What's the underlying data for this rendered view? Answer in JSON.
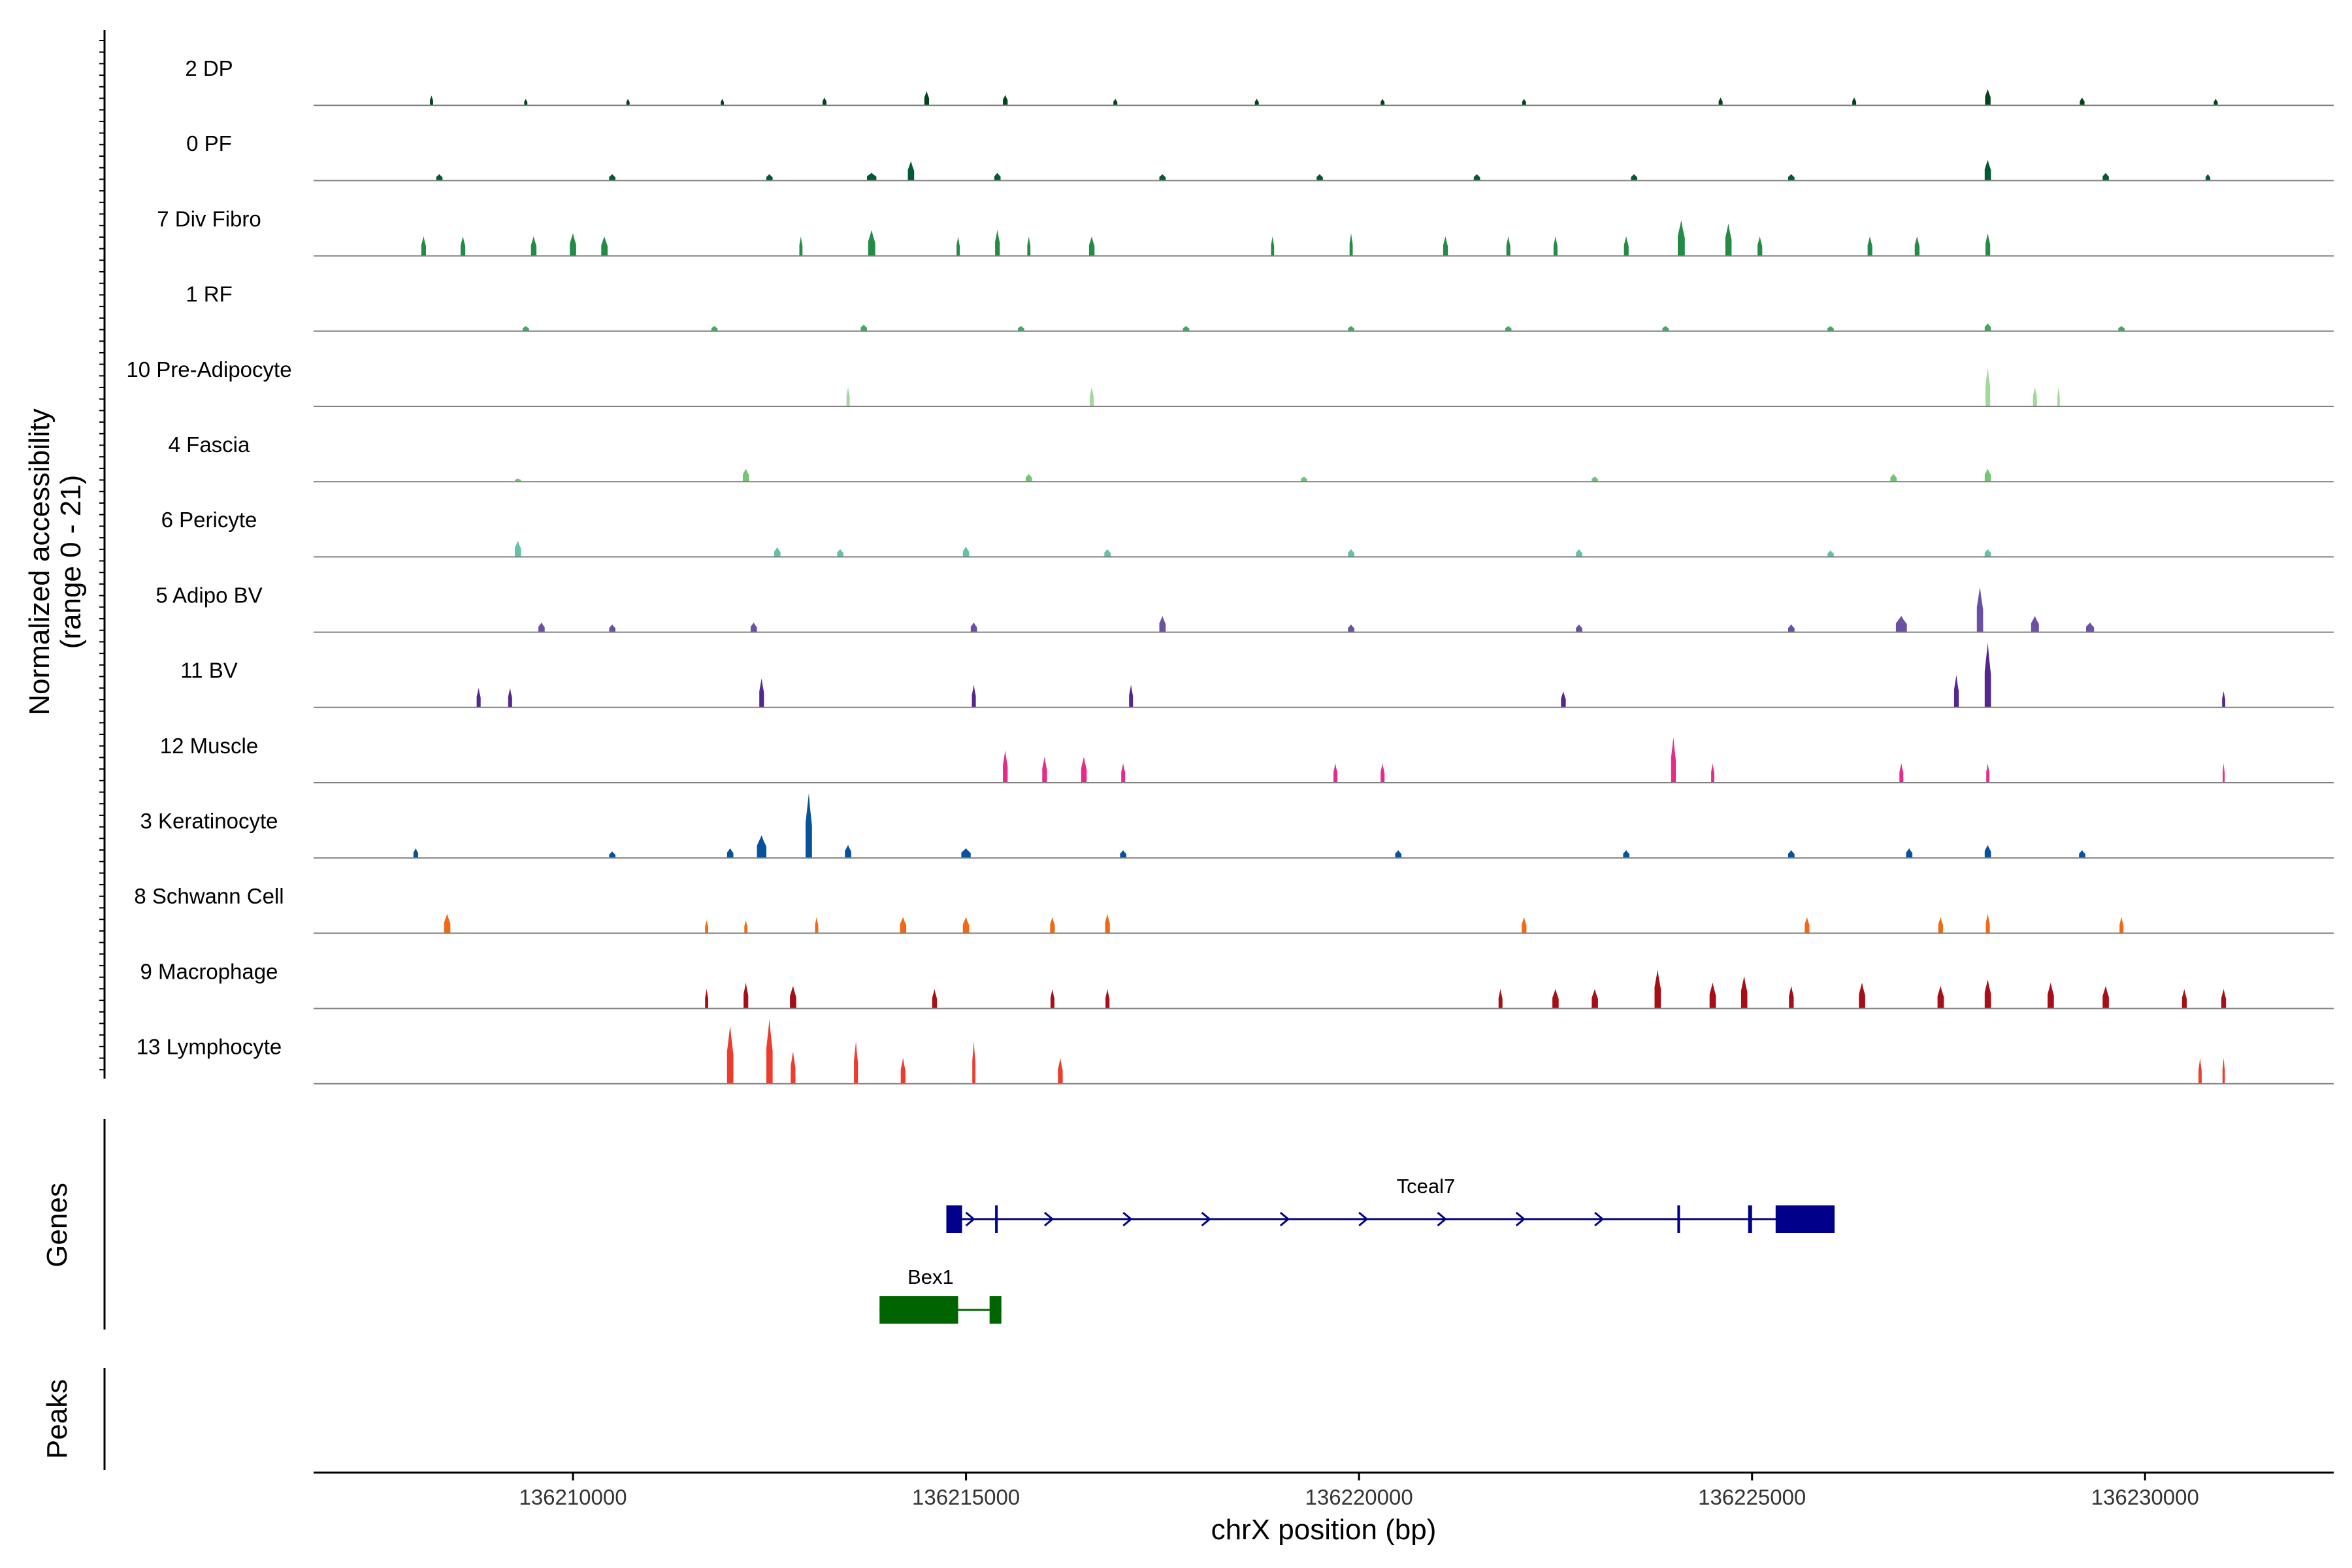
{
  "chart_data": {
    "type": "coverage",
    "title": "",
    "xlabel": "chrX position (bp)",
    "ylabel": [
      "Normalized accessibility",
      "(range 0 - 21)"
    ],
    "xlim": [
      136206700,
      136232400
    ],
    "ylim": [
      0,
      21
    ],
    "xticks": [
      136210000,
      136215000,
      136220000,
      136225000,
      136230000
    ],
    "xtick_labels": [
      "136210000",
      "136215000",
      "136220000",
      "136225000",
      "136230000"
    ],
    "tracks": [
      {
        "name": "2 DP",
        "color": "#00441b",
        "peaks": [
          [
            136208200,
            20,
            0.15
          ],
          [
            136209400,
            20,
            0.1
          ],
          [
            136210700,
            20,
            0.1
          ],
          [
            136211900,
            20,
            0.1
          ],
          [
            136213200,
            25,
            0.12
          ],
          [
            136214500,
            30,
            0.22
          ],
          [
            136215500,
            30,
            0.16
          ],
          [
            136216900,
            25,
            0.1
          ],
          [
            136218700,
            25,
            0.1
          ],
          [
            136220300,
            25,
            0.1
          ],
          [
            136222100,
            25,
            0.1
          ],
          [
            136224600,
            25,
            0.12
          ],
          [
            136226300,
            25,
            0.12
          ],
          [
            136228000,
            35,
            0.25
          ],
          [
            136229200,
            30,
            0.12
          ],
          [
            136230900,
            25,
            0.1
          ]
        ]
      },
      {
        "name": "0 PF",
        "color": "#005a32",
        "peaks": [
          [
            136208300,
            40,
            0.1
          ],
          [
            136210500,
            40,
            0.1
          ],
          [
            136212500,
            40,
            0.1
          ],
          [
            136213800,
            60,
            0.12
          ],
          [
            136214300,
            40,
            0.3
          ],
          [
            136215400,
            40,
            0.12
          ],
          [
            136217500,
            40,
            0.1
          ],
          [
            136219500,
            40,
            0.1
          ],
          [
            136221500,
            40,
            0.1
          ],
          [
            136223500,
            40,
            0.1
          ],
          [
            136225500,
            40,
            0.1
          ],
          [
            136228000,
            40,
            0.32
          ],
          [
            136229500,
            40,
            0.12
          ],
          [
            136230800,
            30,
            0.1
          ]
        ]
      },
      {
        "name": "7 Div Fibro",
        "color": "#238b45",
        "peaks": [
          [
            136208100,
            30,
            0.3
          ],
          [
            136208600,
            30,
            0.3
          ],
          [
            136209500,
            35,
            0.3
          ],
          [
            136210000,
            40,
            0.35
          ],
          [
            136210400,
            40,
            0.3
          ],
          [
            136212900,
            20,
            0.3
          ],
          [
            136213800,
            45,
            0.4
          ],
          [
            136214900,
            20,
            0.3
          ],
          [
            136215400,
            30,
            0.4
          ],
          [
            136215800,
            20,
            0.3
          ],
          [
            136216600,
            35,
            0.3
          ],
          [
            136218900,
            20,
            0.3
          ],
          [
            136219900,
            20,
            0.35
          ],
          [
            136221100,
            30,
            0.3
          ],
          [
            136221900,
            25,
            0.3
          ],
          [
            136222500,
            25,
            0.3
          ],
          [
            136223400,
            30,
            0.3
          ],
          [
            136224100,
            45,
            0.55
          ],
          [
            136224700,
            40,
            0.5
          ],
          [
            136225100,
            30,
            0.3
          ],
          [
            136226500,
            30,
            0.3
          ],
          [
            136227100,
            30,
            0.3
          ],
          [
            136228000,
            30,
            0.35
          ]
        ]
      },
      {
        "name": "1 RF",
        "color": "#41ab5d",
        "peaks": [
          [
            136209400,
            40,
            0.08
          ],
          [
            136211800,
            40,
            0.08
          ],
          [
            136213700,
            40,
            0.1
          ],
          [
            136215700,
            40,
            0.08
          ],
          [
            136217800,
            40,
            0.08
          ],
          [
            136219900,
            40,
            0.08
          ],
          [
            136221900,
            40,
            0.08
          ],
          [
            136223900,
            40,
            0.08
          ],
          [
            136226000,
            40,
            0.08
          ],
          [
            136228000,
            40,
            0.12
          ],
          [
            136229700,
            40,
            0.08
          ]
        ]
      },
      {
        "name": "10 Pre-Adipocyte",
        "color": "#a1d99b",
        "peaks": [
          [
            136213500,
            20,
            0.3
          ],
          [
            136216600,
            25,
            0.3
          ],
          [
            136228000,
            30,
            0.6
          ],
          [
            136228600,
            25,
            0.3
          ],
          [
            136228900,
            15,
            0.3
          ]
        ]
      },
      {
        "name": "4 Fascia",
        "color": "#74c476",
        "peaks": [
          [
            136209300,
            40,
            0.05
          ],
          [
            136212200,
            40,
            0.2
          ],
          [
            136215800,
            40,
            0.12
          ],
          [
            136219300,
            40,
            0.08
          ],
          [
            136223000,
            40,
            0.08
          ],
          [
            136226800,
            40,
            0.12
          ],
          [
            136228000,
            40,
            0.2
          ]
        ]
      },
      {
        "name": "6 Pericyte",
        "color": "#66c2a4",
        "peaks": [
          [
            136209300,
            40,
            0.25
          ],
          [
            136212600,
            40,
            0.15
          ],
          [
            136213400,
            40,
            0.12
          ],
          [
            136215000,
            40,
            0.16
          ],
          [
            136216800,
            40,
            0.12
          ],
          [
            136219900,
            40,
            0.12
          ],
          [
            136222800,
            40,
            0.12
          ],
          [
            136226000,
            40,
            0.1
          ],
          [
            136228000,
            40,
            0.12
          ]
        ]
      },
      {
        "name": "5 Adipo BV",
        "color": "#6a51a3",
        "peaks": [
          [
            136209600,
            40,
            0.15
          ],
          [
            136210500,
            40,
            0.12
          ],
          [
            136212300,
            40,
            0.15
          ],
          [
            136215100,
            40,
            0.15
          ],
          [
            136217500,
            40,
            0.25
          ],
          [
            136219900,
            40,
            0.12
          ],
          [
            136222800,
            40,
            0.12
          ],
          [
            136225500,
            40,
            0.12
          ],
          [
            136226900,
            70,
            0.25
          ],
          [
            136227900,
            40,
            0.7
          ],
          [
            136228600,
            50,
            0.25
          ],
          [
            136229300,
            50,
            0.15
          ]
        ]
      },
      {
        "name": "11 BV",
        "color": "#54278f",
        "peaks": [
          [
            136208800,
            25,
            0.3
          ],
          [
            136209200,
            25,
            0.3
          ],
          [
            136212400,
            30,
            0.45
          ],
          [
            136215100,
            25,
            0.35
          ],
          [
            136217100,
            25,
            0.35
          ],
          [
            136222600,
            30,
            0.25
          ],
          [
            136227600,
            30,
            0.5
          ],
          [
            136228000,
            40,
            1.0
          ],
          [
            136231000,
            20,
            0.25
          ]
        ]
      },
      {
        "name": "12 Muscle",
        "color": "#e7298a",
        "peaks": [
          [
            136215500,
            30,
            0.5
          ],
          [
            136216000,
            30,
            0.4
          ],
          [
            136216500,
            35,
            0.4
          ],
          [
            136217000,
            25,
            0.3
          ],
          [
            136219700,
            25,
            0.3
          ],
          [
            136220300,
            25,
            0.3
          ],
          [
            136224000,
            30,
            0.7
          ],
          [
            136224500,
            20,
            0.3
          ],
          [
            136226900,
            25,
            0.3
          ],
          [
            136228000,
            20,
            0.3
          ],
          [
            136231000,
            10,
            0.3
          ]
        ]
      },
      {
        "name": "3 Keratinocyte",
        "color": "#08519c",
        "peaks": [
          [
            136208000,
            30,
            0.15
          ],
          [
            136210500,
            40,
            0.1
          ],
          [
            136212000,
            40,
            0.15
          ],
          [
            136212400,
            60,
            0.35
          ],
          [
            136213000,
            40,
            1.0
          ],
          [
            136213500,
            40,
            0.2
          ],
          [
            136215000,
            60,
            0.15
          ],
          [
            136217000,
            40,
            0.12
          ],
          [
            136220500,
            40,
            0.12
          ],
          [
            136223400,
            40,
            0.12
          ],
          [
            136225500,
            40,
            0.12
          ],
          [
            136227000,
            40,
            0.15
          ],
          [
            136228000,
            40,
            0.2
          ],
          [
            136229200,
            40,
            0.12
          ]
        ]
      },
      {
        "name": "8 Schwann Cell",
        "color": "#f16913",
        "peaks": [
          [
            136208400,
            40,
            0.3
          ],
          [
            136211700,
            20,
            0.2
          ],
          [
            136212200,
            20,
            0.2
          ],
          [
            136213100,
            20,
            0.25
          ],
          [
            136214200,
            40,
            0.25
          ],
          [
            136215000,
            40,
            0.25
          ],
          [
            136216100,
            30,
            0.25
          ],
          [
            136216800,
            30,
            0.3
          ],
          [
            136222100,
            30,
            0.25
          ],
          [
            136225700,
            30,
            0.25
          ],
          [
            136227400,
            30,
            0.25
          ],
          [
            136228000,
            25,
            0.3
          ],
          [
            136229700,
            25,
            0.25
          ]
        ]
      },
      {
        "name": "9 Macrophage",
        "color": "#a50f15",
        "peaks": [
          [
            136211700,
            20,
            0.3
          ],
          [
            136212200,
            30,
            0.4
          ],
          [
            136212800,
            40,
            0.35
          ],
          [
            136214600,
            30,
            0.3
          ],
          [
            136216100,
            25,
            0.3
          ],
          [
            136216800,
            25,
            0.3
          ],
          [
            136221800,
            25,
            0.3
          ],
          [
            136222500,
            40,
            0.3
          ],
          [
            136223000,
            40,
            0.3
          ],
          [
            136223800,
            40,
            0.6
          ],
          [
            136224500,
            40,
            0.4
          ],
          [
            136224900,
            40,
            0.5
          ],
          [
            136225500,
            30,
            0.35
          ],
          [
            136226400,
            40,
            0.4
          ],
          [
            136227400,
            40,
            0.35
          ],
          [
            136228000,
            40,
            0.45
          ],
          [
            136228800,
            40,
            0.4
          ],
          [
            136229500,
            40,
            0.35
          ],
          [
            136230500,
            30,
            0.3
          ],
          [
            136231000,
            30,
            0.3
          ]
        ]
      },
      {
        "name": "13 Lymphocyte",
        "color": "#ef3b2c",
        "peaks": [
          [
            136212000,
            40,
            0.9
          ],
          [
            136212500,
            40,
            1.0
          ],
          [
            136212800,
            30,
            0.5
          ],
          [
            136213600,
            25,
            0.65
          ],
          [
            136214200,
            30,
            0.4
          ],
          [
            136215100,
            20,
            0.65
          ],
          [
            136216200,
            30,
            0.4
          ],
          [
            136230700,
            20,
            0.4
          ],
          [
            136231000,
            15,
            0.4
          ]
        ]
      }
    ],
    "genes_label": "Genes",
    "peaks_label": "Peaks",
    "genes": [
      {
        "name": "Tceal7",
        "strand": "+",
        "color": "#00008b",
        "start": 136214750,
        "end": 136226050,
        "exons": [
          [
            136214750,
            136214950
          ],
          [
            136215370,
            136215390
          ],
          [
            136224050,
            136224080
          ],
          [
            136224950,
            136225000
          ],
          [
            136225300,
            136226050
          ]
        ]
      },
      {
        "name": "Bex1",
        "strand": "-",
        "color": "#006400",
        "start": 136213900,
        "end": 136215450,
        "exons": [
          [
            136213900,
            136214900
          ],
          [
            136215300,
            136215450
          ]
        ]
      }
    ]
  }
}
